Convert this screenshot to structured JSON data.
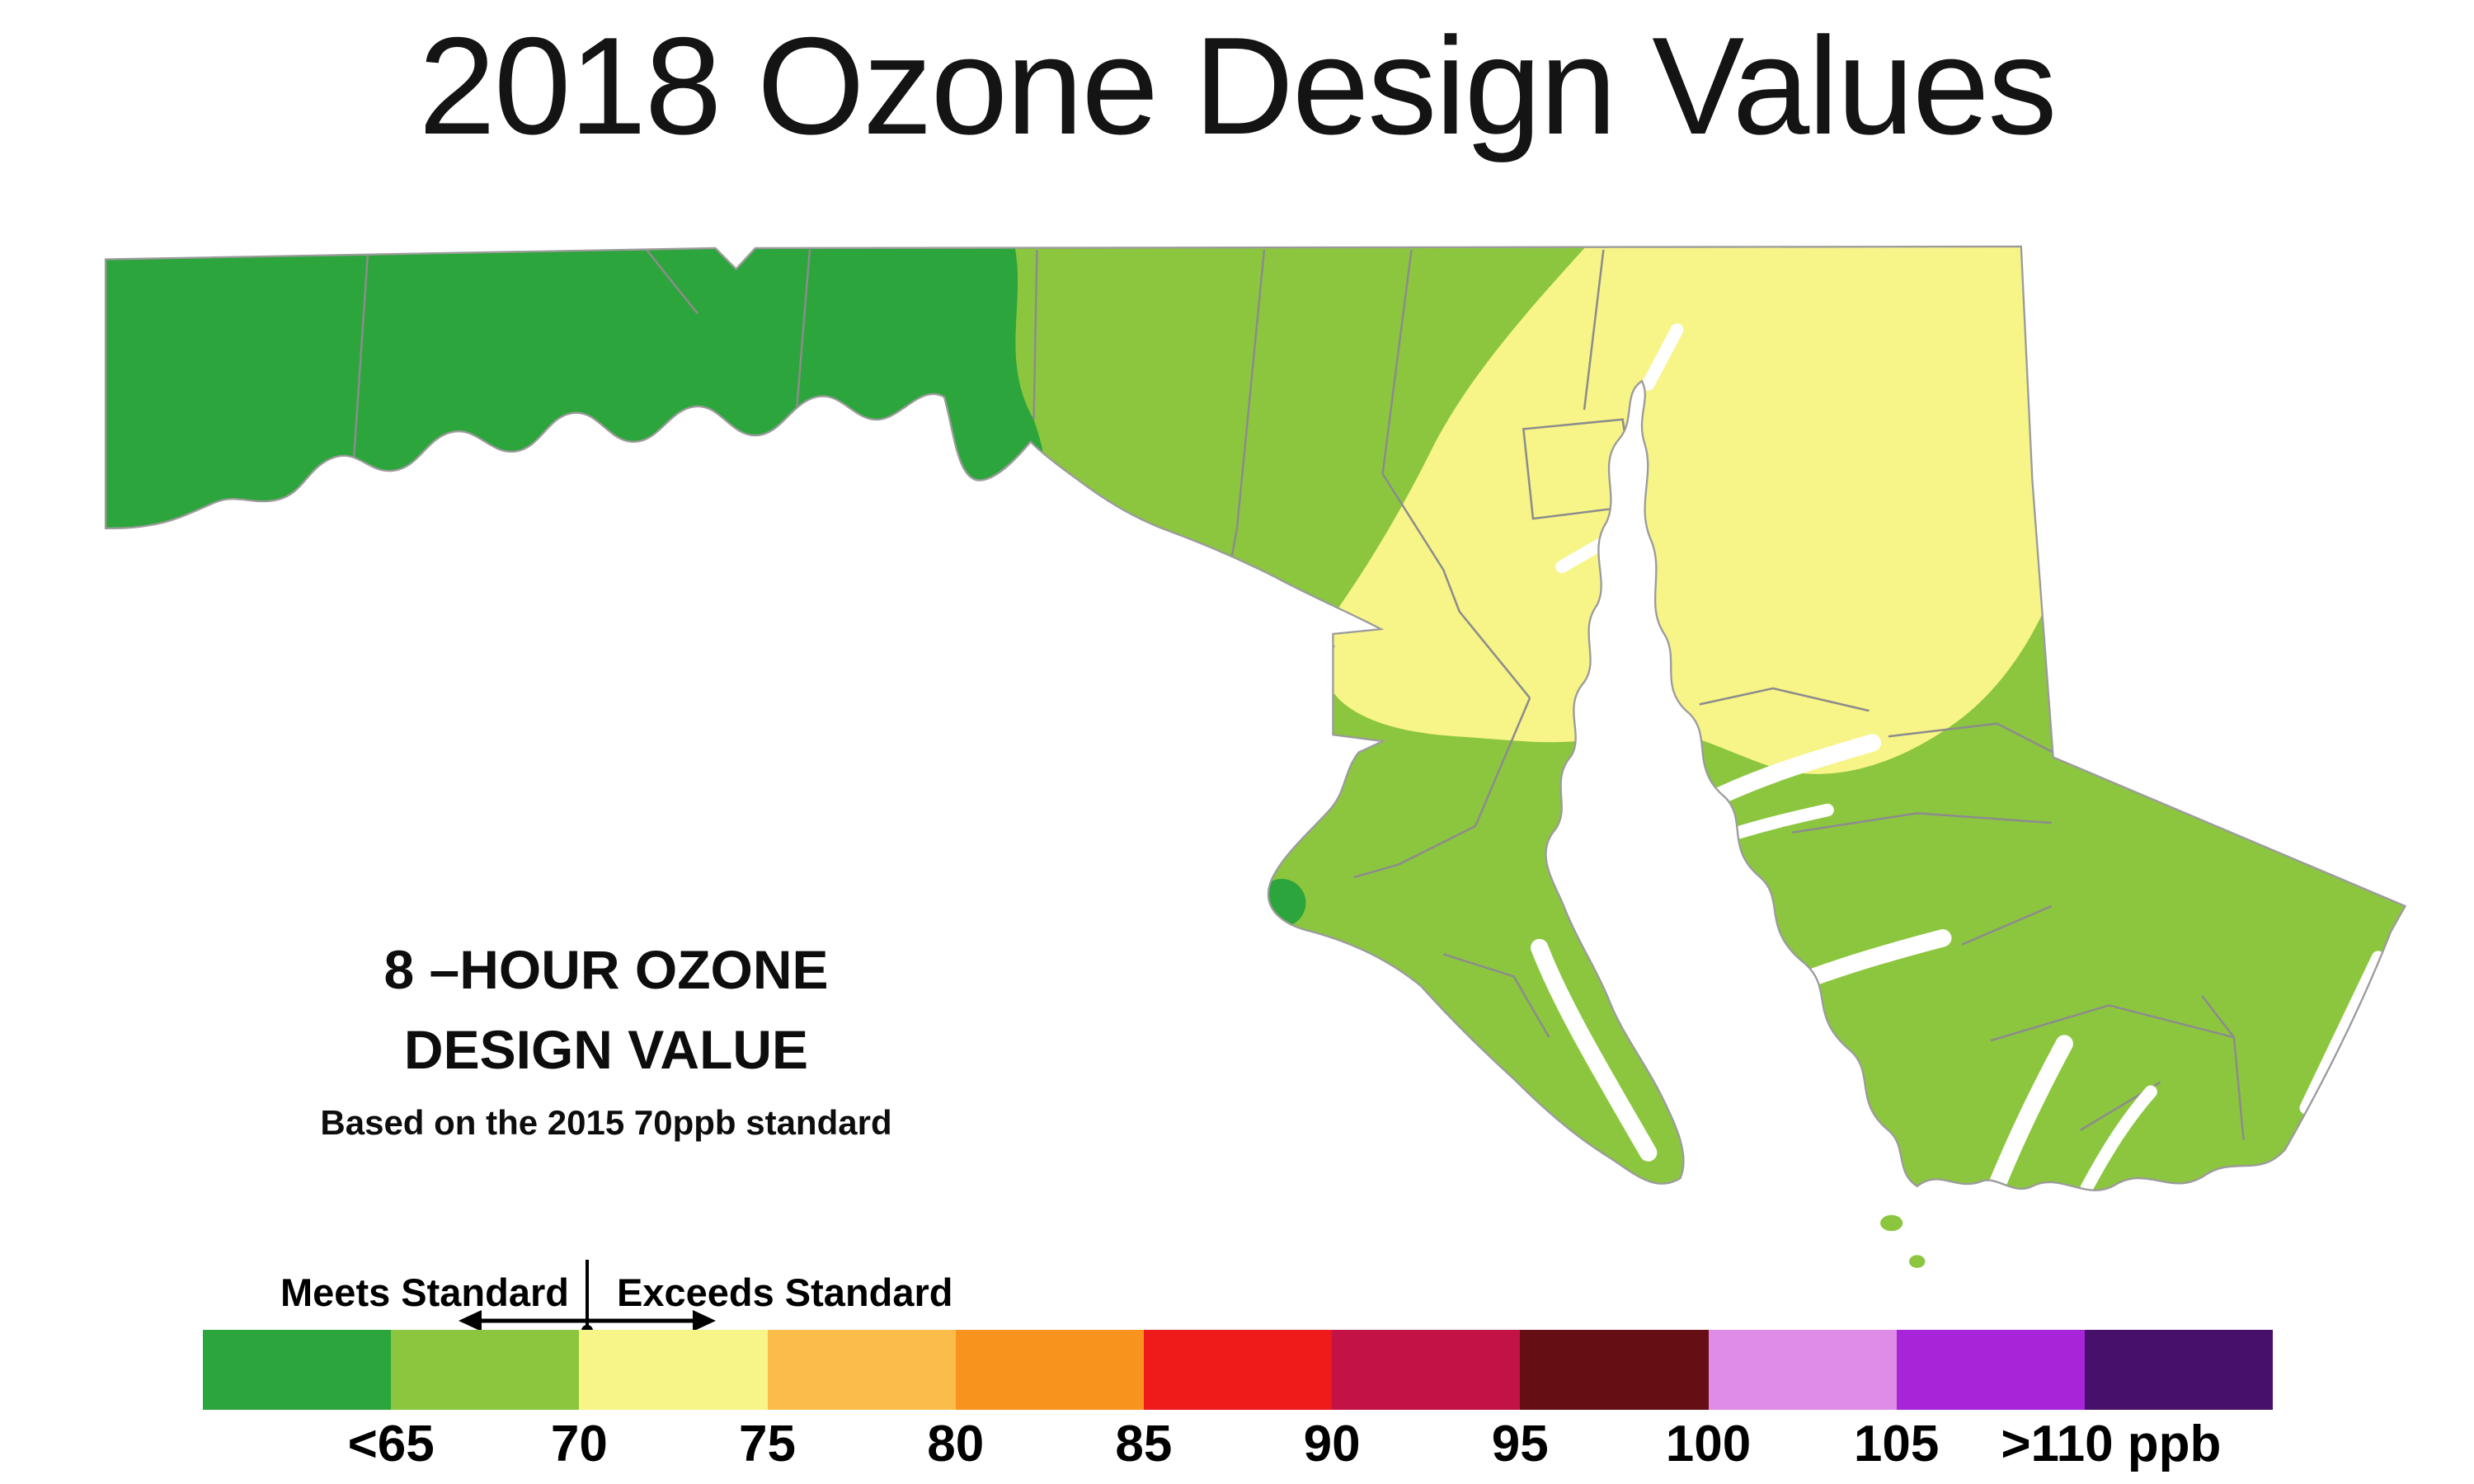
{
  "title": "2018 Ozone Design Values",
  "map": {
    "caption_line1": "8 –HOUR OZONE",
    "caption_line2": "DESIGN VALUE",
    "caption_sub": "Based on the 2015 70ppb standard"
  },
  "legend": {
    "meets_label": "Meets Standard",
    "exceeds_label": "Exceeds Standard",
    "colors": [
      "#2CA53C",
      "#8CC63F",
      "#F7F488",
      "#FBBD4A",
      "#F8941E",
      "#EF1A1A",
      "#C31246",
      "#650F14",
      "#DE8CE6",
      "#A824D9",
      "#46106B"
    ],
    "tick_labels": [
      "<65",
      "70",
      "75",
      "80",
      "85",
      "90",
      "95",
      "100",
      "105",
      ">110 ppb"
    ]
  }
}
